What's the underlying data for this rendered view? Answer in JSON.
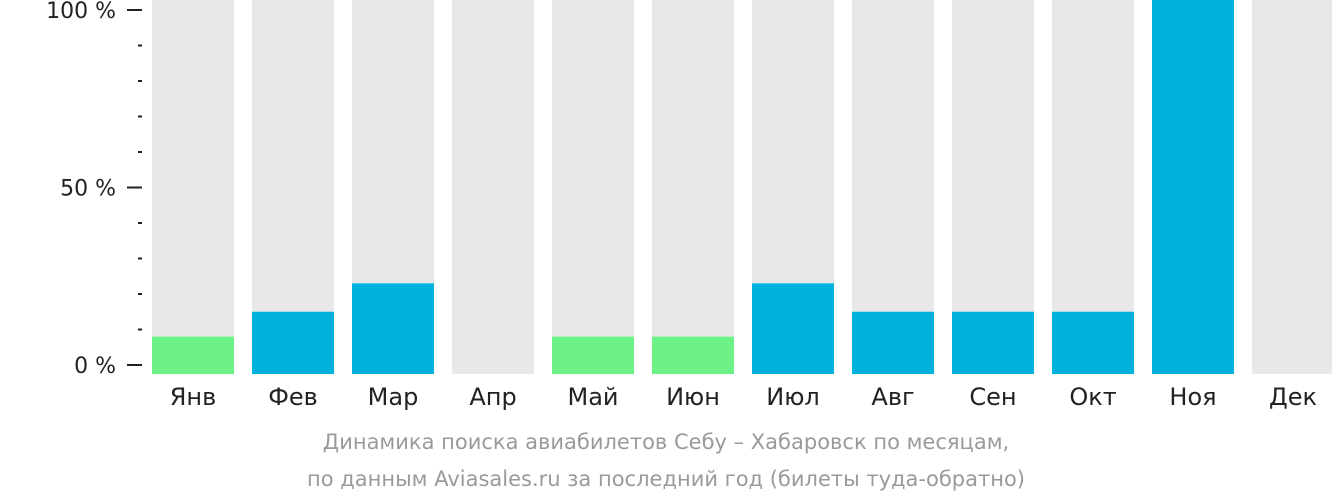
{
  "chart_data": {
    "type": "bar",
    "categories": [
      "Янв",
      "Фев",
      "Мар",
      "Апр",
      "Май",
      "Июн",
      "Июл",
      "Авг",
      "Сен",
      "Окт",
      "Ноя",
      "Дек"
    ],
    "values": [
      8,
      15,
      23,
      0,
      8,
      8,
      23,
      15,
      15,
      15,
      100,
      0
    ],
    "ylim": [
      0,
      100
    ],
    "yticks": [
      {
        "value": 0,
        "label": "0 %"
      },
      {
        "value": 50,
        "label": "50 %"
      },
      {
        "value": 100,
        "label": "100 %"
      }
    ],
    "minor_tick_step": 10,
    "grid": false,
    "legend": "none",
    "colors": {
      "background_bar": "#e8e8e8",
      "high": "#00b1dd",
      "low": "#6cf187",
      "axis": "#222222"
    },
    "low_threshold": 10,
    "caption": [
      "Динамика поиска авиабилетов Себу – Хабаровск по месяцам,",
      "по данным Aviasales.ru за последний год (билеты туда-обратно)"
    ]
  }
}
